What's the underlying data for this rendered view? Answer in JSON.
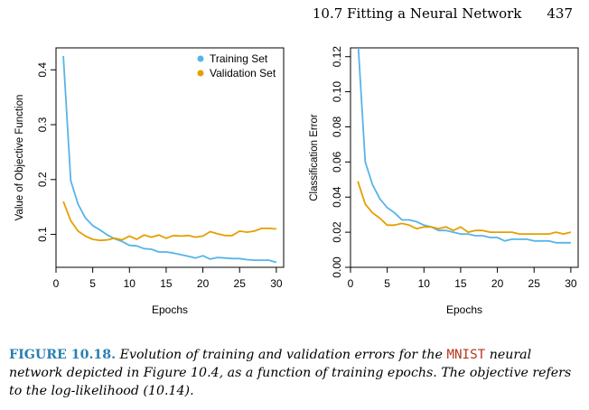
{
  "header": {
    "section": "10.7 Fitting a Neural Network",
    "page_number": "437"
  },
  "colors": {
    "training": "#56b4e9",
    "validation": "#e69f00",
    "caption_label": "#2a7fb0",
    "code": "#b5351d"
  },
  "chart_data": [
    {
      "type": "line",
      "xlabel": "Epochs",
      "ylabel": "Value of Objective Function",
      "xlim": [
        0,
        31
      ],
      "ylim": [
        0.04,
        0.44
      ],
      "xticks": [
        0,
        5,
        10,
        15,
        20,
        25,
        30
      ],
      "yticks": [
        0.1,
        0.2,
        0.3,
        0.4
      ],
      "ytick_labels": [
        "0.1",
        "0.2",
        "0.3",
        "0.4"
      ],
      "legend": {
        "position": "top-right"
      },
      "x": [
        1,
        2,
        3,
        4,
        5,
        6,
        7,
        8,
        9,
        10,
        11,
        12,
        13,
        14,
        15,
        16,
        17,
        18,
        19,
        20,
        21,
        22,
        23,
        24,
        25,
        26,
        27,
        28,
        29,
        30
      ],
      "series": [
        {
          "name": "Training Set",
          "color": "#56b4e9",
          "values": [
            0.425,
            0.198,
            0.155,
            0.13,
            0.116,
            0.108,
            0.099,
            0.092,
            0.087,
            0.08,
            0.079,
            0.074,
            0.073,
            0.068,
            0.068,
            0.066,
            0.063,
            0.06,
            0.057,
            0.061,
            0.055,
            0.058,
            0.057,
            0.056,
            0.056,
            0.054,
            0.053,
            0.053,
            0.053,
            0.049
          ]
        },
        {
          "name": "Validation Set",
          "color": "#e69f00",
          "values": [
            0.16,
            0.125,
            0.106,
            0.097,
            0.091,
            0.089,
            0.09,
            0.093,
            0.09,
            0.097,
            0.091,
            0.099,
            0.095,
            0.099,
            0.093,
            0.098,
            0.097,
            0.098,
            0.095,
            0.097,
            0.105,
            0.101,
            0.098,
            0.098,
            0.106,
            0.104,
            0.106,
            0.111,
            0.111,
            0.11
          ]
        }
      ]
    },
    {
      "type": "line",
      "xlabel": "Epochs",
      "ylabel": "Classification Error",
      "xlim": [
        0,
        31
      ],
      "ylim": [
        0.0,
        0.125
      ],
      "xticks": [
        0,
        5,
        10,
        15,
        20,
        25,
        30
      ],
      "yticks": [
        0.0,
        0.02,
        0.04,
        0.06,
        0.08,
        0.1,
        0.12
      ],
      "ytick_labels": [
        "0.00",
        "0.02",
        "0.04",
        "0.06",
        "0.08",
        "0.10",
        "0.12"
      ],
      "x": [
        1,
        2,
        3,
        4,
        5,
        6,
        7,
        8,
        9,
        10,
        11,
        12,
        13,
        14,
        15,
        16,
        17,
        18,
        19,
        20,
        21,
        22,
        23,
        24,
        25,
        26,
        27,
        28,
        29,
        30
      ],
      "series": [
        {
          "name": "Training Set",
          "color": "#56b4e9",
          "values": [
            0.13,
            0.06,
            0.047,
            0.039,
            0.034,
            0.031,
            0.027,
            0.027,
            0.026,
            0.024,
            0.023,
            0.021,
            0.021,
            0.02,
            0.019,
            0.019,
            0.018,
            0.018,
            0.017,
            0.017,
            0.015,
            0.016,
            0.016,
            0.016,
            0.015,
            0.015,
            0.015,
            0.014,
            0.014,
            0.014
          ]
        },
        {
          "name": "Validation Set",
          "color": "#e69f00",
          "values": [
            0.049,
            0.036,
            0.031,
            0.028,
            0.024,
            0.024,
            0.025,
            0.024,
            0.022,
            0.023,
            0.023,
            0.022,
            0.023,
            0.021,
            0.023,
            0.02,
            0.021,
            0.021,
            0.02,
            0.02,
            0.02,
            0.02,
            0.019,
            0.019,
            0.019,
            0.019,
            0.019,
            0.02,
            0.019,
            0.02
          ]
        }
      ]
    }
  ],
  "caption": {
    "label": "FIGURE 10.18.",
    "text1": "Evolution of training and validation errors for the",
    "code": "MNIST",
    "text2": "neural network depicted in Figure 10.4, as a function of training epochs. The objective refers to the log-likelihood (10.14)."
  }
}
